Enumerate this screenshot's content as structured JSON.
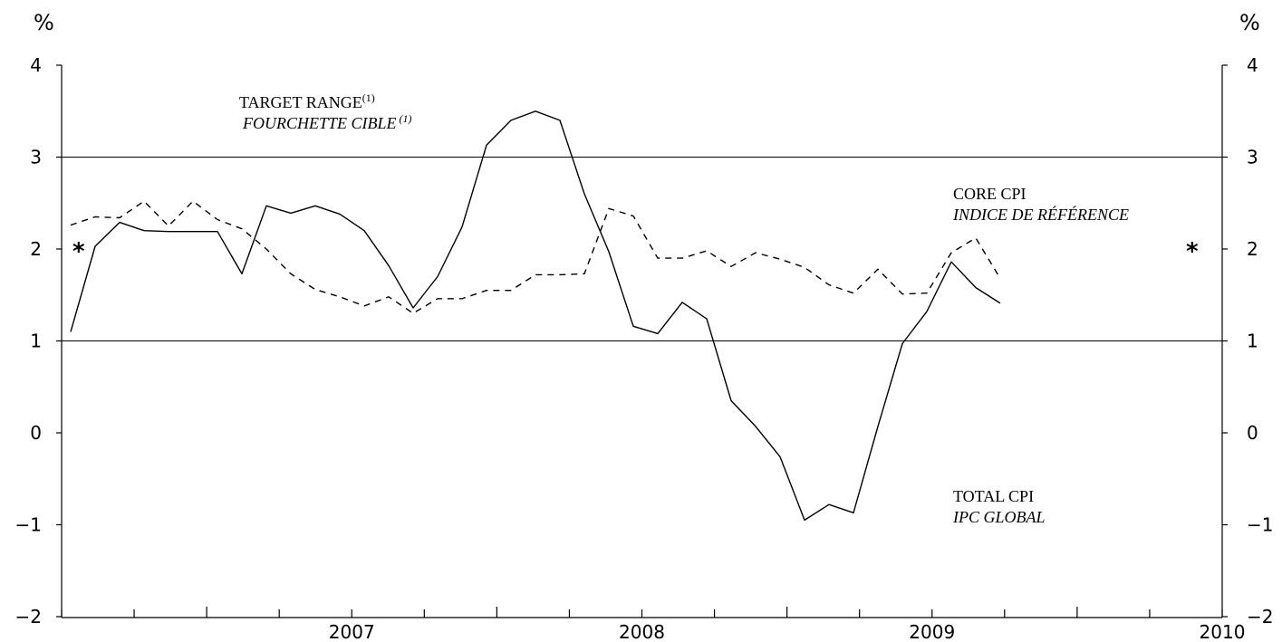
{
  "chart_data": {
    "type": "line",
    "y_unit_left": "%",
    "y_unit_right": "%",
    "ylim": [
      -2,
      4
    ],
    "yticks": [
      -2,
      -1,
      0,
      1,
      2,
      3,
      4
    ],
    "ytick_labels": [
      "−2",
      "−1",
      "0",
      "1",
      "2",
      "3",
      "4"
    ],
    "xlim": [
      "2006-07",
      "2010-07"
    ],
    "x_year_labels": [
      "2007",
      "2008",
      "2009",
      "2010"
    ],
    "target_range": {
      "lower": 1,
      "upper": 3,
      "label_en": "TARGET RANGE",
      "label_fr": "FOURCHETTE CIBLE",
      "note_marker": "(1)"
    },
    "midpoint_marker": {
      "value": 2,
      "symbol": "*"
    },
    "series": [
      {
        "name": "TOTAL CPI",
        "name_fr": "IPC GLOBAL",
        "style": "solid",
        "color": "#000000",
        "start": "2006-07",
        "values": [
          1.1,
          2.03,
          2.29,
          2.2,
          2.19,
          2.19,
          2.19,
          1.73,
          2.47,
          2.39,
          2.47,
          2.38,
          2.2,
          1.82,
          1.36,
          1.7,
          2.24,
          3.13,
          3.4,
          3.5,
          3.4,
          2.6,
          1.97,
          1.16,
          1.08,
          1.42,
          1.24,
          0.35,
          0.07,
          -0.26,
          -0.95,
          -0.78,
          -0.87,
          0.07,
          0.97,
          1.32,
          1.86,
          1.58,
          1.41
        ]
      },
      {
        "name": "CORE CPI",
        "name_fr": "INDICE DE RÉFÉRENCE",
        "style": "dashed",
        "color": "#000000",
        "start": "2006-07",
        "values": [
          2.26,
          2.35,
          2.34,
          2.52,
          2.25,
          2.52,
          2.32,
          2.22,
          2.0,
          1.73,
          1.56,
          1.48,
          1.38,
          1.48,
          1.3,
          1.46,
          1.46,
          1.55,
          1.55,
          1.72,
          1.72,
          1.73,
          2.44,
          2.36,
          1.9,
          1.9,
          1.98,
          1.81,
          1.96,
          1.89,
          1.8,
          1.61,
          1.52,
          1.78,
          1.51,
          1.52,
          1.96,
          2.12,
          1.68
        ]
      }
    ],
    "annotations": {
      "core_en": "CORE CPI",
      "core_fr": "INDICE DE RÉFÉRENCE",
      "total_en": "TOTAL CPI",
      "total_fr": "IPC GLOBAL"
    }
  }
}
